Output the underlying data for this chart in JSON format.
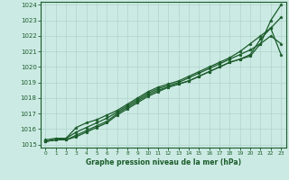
{
  "xlabel": "Graphe pression niveau de la mer (hPa)",
  "xlim": [
    0,
    23
  ],
  "ylim": [
    1015,
    1024
  ],
  "yticks": [
    1015,
    1016,
    1017,
    1018,
    1019,
    1020,
    1021,
    1022,
    1023,
    1024
  ],
  "xticks": [
    0,
    1,
    2,
    3,
    4,
    5,
    6,
    7,
    8,
    9,
    10,
    11,
    12,
    13,
    14,
    15,
    16,
    17,
    18,
    19,
    20,
    21,
    22,
    23
  ],
  "background_color": "#cceae4",
  "grid_color": "#b0d4cc",
  "line_color": "#1a5c2a",
  "series": [
    [
      1015.2,
      1015.3,
      1015.3,
      1015.5,
      1015.8,
      1016.1,
      1016.4,
      1016.9,
      1017.3,
      1017.7,
      1018.1,
      1018.4,
      1018.7,
      1018.9,
      1019.1,
      1019.4,
      1019.7,
      1020.0,
      1020.3,
      1020.5,
      1020.7,
      1021.5,
      1023.0,
      1024.0
    ],
    [
      1015.2,
      1015.3,
      1015.3,
      1015.6,
      1015.9,
      1016.2,
      1016.5,
      1017.0,
      1017.4,
      1017.8,
      1018.2,
      1018.5,
      1018.7,
      1018.9,
      1019.1,
      1019.4,
      1019.7,
      1020.0,
      1020.3,
      1020.5,
      1020.8,
      1021.8,
      1022.5,
      1023.2
    ],
    [
      1015.2,
      1015.3,
      1015.4,
      1015.8,
      1016.1,
      1016.4,
      1016.7,
      1017.1,
      1017.5,
      1017.9,
      1018.3,
      1018.6,
      1018.8,
      1019.0,
      1019.3,
      1019.6,
      1019.9,
      1020.2,
      1020.5,
      1020.8,
      1021.1,
      1021.5,
      1022.0,
      1021.5
    ],
    [
      1015.3,
      1015.4,
      1015.4,
      1016.1,
      1016.4,
      1016.6,
      1016.9,
      1017.2,
      1017.6,
      1018.0,
      1018.4,
      1018.7,
      1018.9,
      1019.1,
      1019.4,
      1019.7,
      1020.0,
      1020.3,
      1020.6,
      1021.0,
      1021.5,
      1022.0,
      1022.5,
      1020.8
    ]
  ]
}
